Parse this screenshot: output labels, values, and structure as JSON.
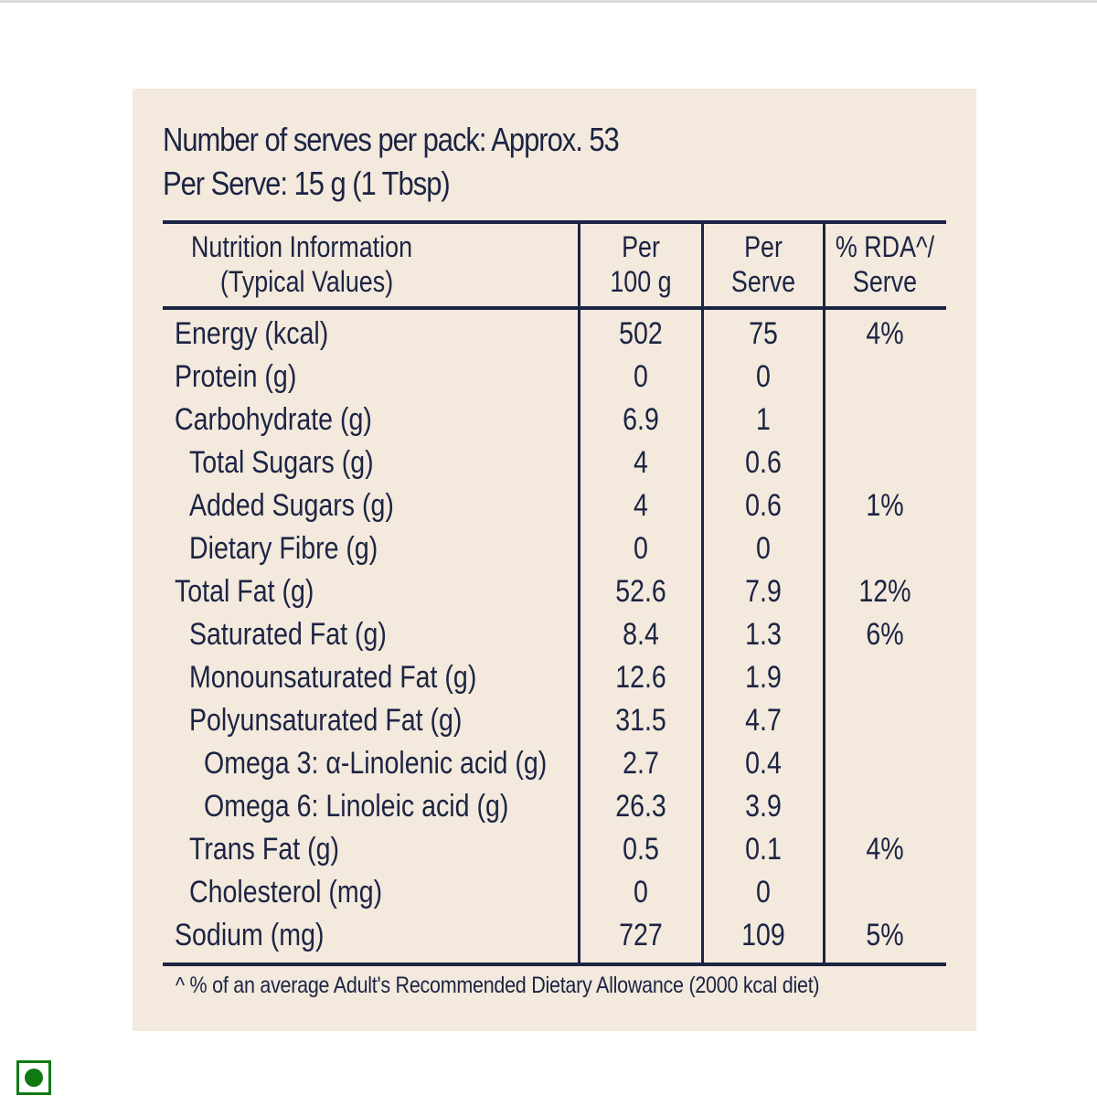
{
  "header": {
    "serves_per_pack": "Number of serves per pack: Approx. 53",
    "per_serve": "Per Serve: 15 g (1 Tbsp)"
  },
  "table": {
    "columns": [
      {
        "line1": "Nutrition Information",
        "line2": "(Typical Values)"
      },
      {
        "line1": "Per",
        "line2": "100 g"
      },
      {
        "line1": "Per",
        "line2": "Serve"
      },
      {
        "line1": "% RDA^/",
        "line2": "Serve"
      }
    ],
    "rows": [
      {
        "name": "Energy (kcal)",
        "indent": 0,
        "per_100g": "502",
        "per_serve": "75",
        "rda": "4%"
      },
      {
        "name": "Protein (g)",
        "indent": 0,
        "per_100g": "0",
        "per_serve": "0",
        "rda": ""
      },
      {
        "name": "Carbohydrate (g)",
        "indent": 0,
        "per_100g": "6.9",
        "per_serve": "1",
        "rda": ""
      },
      {
        "name": "Total Sugars (g)",
        "indent": 1,
        "per_100g": "4",
        "per_serve": "0.6",
        "rda": ""
      },
      {
        "name": "Added Sugars (g)",
        "indent": 1,
        "per_100g": "4",
        "per_serve": "0.6",
        "rda": "1%"
      },
      {
        "name": "Dietary Fibre (g)",
        "indent": 1,
        "per_100g": "0",
        "per_serve": "0",
        "rda": ""
      },
      {
        "name": "Total Fat (g)",
        "indent": 0,
        "per_100g": "52.6",
        "per_serve": "7.9",
        "rda": "12%"
      },
      {
        "name": "Saturated Fat (g)",
        "indent": 1,
        "per_100g": "8.4",
        "per_serve": "1.3",
        "rda": "6%"
      },
      {
        "name": "Monounsaturated Fat (g)",
        "indent": 1,
        "per_100g": "12.6",
        "per_serve": "1.9",
        "rda": ""
      },
      {
        "name": "Polyunsaturated Fat (g)",
        "indent": 1,
        "per_100g": "31.5",
        "per_serve": "4.7",
        "rda": ""
      },
      {
        "name": "Omega 3: α-Linolenic acid (g)",
        "indent": 2,
        "per_100g": "2.7",
        "per_serve": "0.4",
        "rda": ""
      },
      {
        "name": "Omega 6: Linoleic acid (g)",
        "indent": 2,
        "per_100g": "26.3",
        "per_serve": "3.9",
        "rda": ""
      },
      {
        "name": "Trans Fat (g)",
        "indent": 1,
        "per_100g": "0.5",
        "per_serve": "0.1",
        "rda": "4%"
      },
      {
        "name": "Cholesterol (mg)",
        "indent": 1,
        "per_100g": "0",
        "per_serve": "0",
        "rda": ""
      },
      {
        "name": "Sodium (mg)",
        "indent": 0,
        "per_100g": "727",
        "per_serve": "109",
        "rda": "5%"
      }
    ]
  },
  "footnote": "^ % of an average Adult's Recommended Dietary Allowance (2000 kcal diet)",
  "veg_mark": {
    "icon": "veg-symbol-icon",
    "color": "#0f7a13"
  },
  "colors": {
    "panel_bg": "#f3e9dc",
    "ink": "#1c2444"
  }
}
